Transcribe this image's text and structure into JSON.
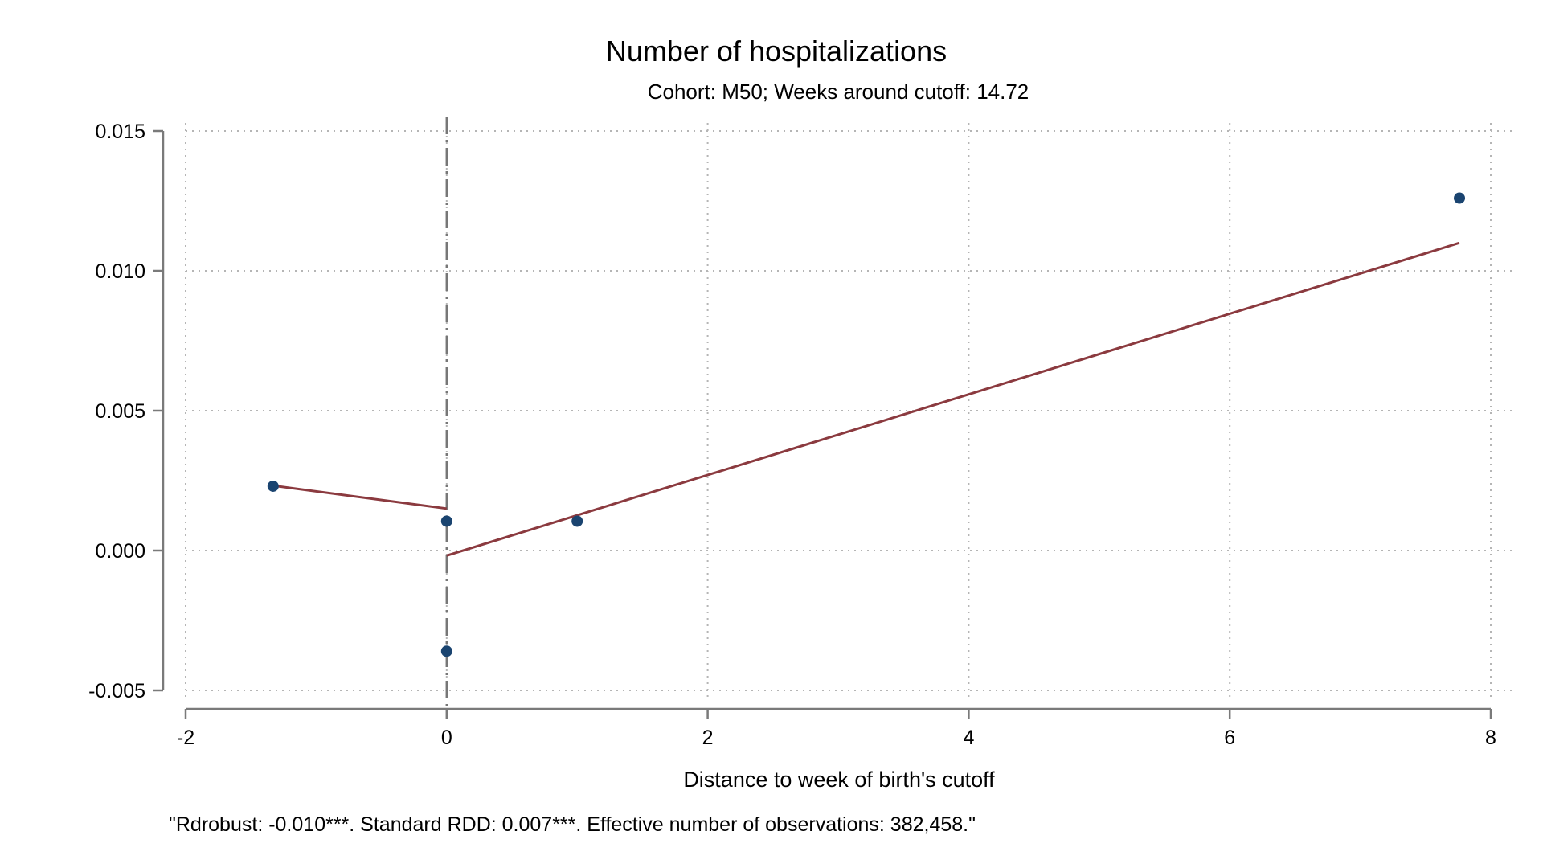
{
  "chart_data": {
    "type": "scatter",
    "title": "Number of hospitalizations",
    "subtitle": "Cohort: M50; Weeks around cutoff:   14.72",
    "xlabel": "Distance to week of birth's cutoff",
    "ylabel": "",
    "note": "\"Rdrobust: -0.010***. Standard RDD: 0.007***. Effective number of observations: 382,458.\"",
    "xlim": [
      -2,
      8
    ],
    "ylim": [
      -0.005,
      0.015
    ],
    "x_ticks": [
      -2,
      0,
      2,
      4,
      6,
      8
    ],
    "x_tick_labels": [
      "-2",
      "0",
      "2",
      "4",
      "6",
      "8"
    ],
    "y_ticks": [
      -0.005,
      0,
      0.005,
      0.01,
      0.015
    ],
    "y_tick_labels": [
      "-0.005",
      "0.000",
      "0.005",
      "0.010",
      "0.015"
    ],
    "grid": true,
    "cutoff_x": 0,
    "points": [
      {
        "x": -1.33,
        "y": 0.0023
      },
      {
        "x": 0.0,
        "y": 0.00105
      },
      {
        "x": 0.0,
        "y": -0.0036
      },
      {
        "x": 1.0,
        "y": 0.00105
      },
      {
        "x": 7.76,
        "y": 0.0126
      }
    ],
    "fit_lines": [
      {
        "segment": "left",
        "points": [
          {
            "x": -1.33,
            "y": 0.00232
          },
          {
            "x": 0.0,
            "y": 0.0015
          }
        ]
      },
      {
        "segment": "right",
        "points": [
          {
            "x": 0.0,
            "y": -0.00018
          },
          {
            "x": 7.76,
            "y": 0.011
          }
        ]
      }
    ],
    "colors": {
      "points": "#1a4470",
      "fit": "#8b3a3f",
      "cutoff": "#777777",
      "grid": "#b5b5b5",
      "axis": "#7a7a7a"
    }
  }
}
